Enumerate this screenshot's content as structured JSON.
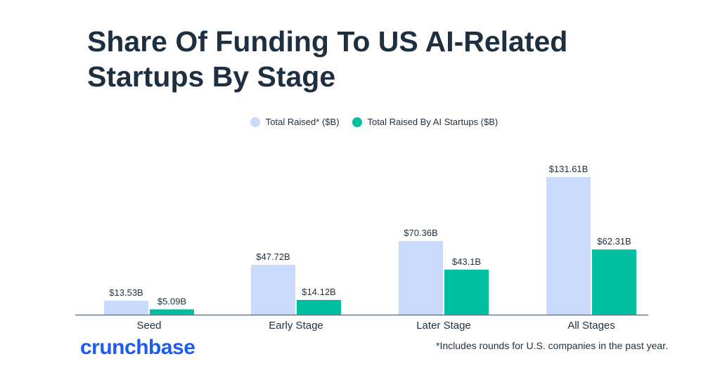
{
  "title": "Share Of Funding To US AI-Related Startups By Stage",
  "footnote": "*Includes rounds for U.S. companies in the past year.",
  "logo": "crunchbase",
  "colors": {
    "total": "#c9dafc",
    "ai": "#00bfa0",
    "title": "#1e3040",
    "logo": "#1c5bf5"
  },
  "chart_data": {
    "type": "bar",
    "title": "Share Of Funding To US AI-Related Startups By Stage",
    "categories": [
      "Seed",
      "Early Stage",
      "Later Stage",
      "All Stages"
    ],
    "series": [
      {
        "name": "Total Raised* ($B)",
        "values": [
          13.53,
          47.72,
          70.36,
          131.61
        ],
        "labels": [
          "$13.53B",
          "$47.72B",
          "$70.36B",
          "$131.61B"
        ]
      },
      {
        "name": "Total Raised By AI Startups ($B)",
        "values": [
          5.09,
          14.12,
          43.1,
          62.31
        ],
        "labels": [
          "$5.09B",
          "$14.12B",
          "$43.1B",
          "$62.31B"
        ]
      }
    ],
    "xlabel": "",
    "ylabel": "",
    "ylim": [
      0,
      140
    ],
    "grid": false,
    "legend": "top-center"
  }
}
